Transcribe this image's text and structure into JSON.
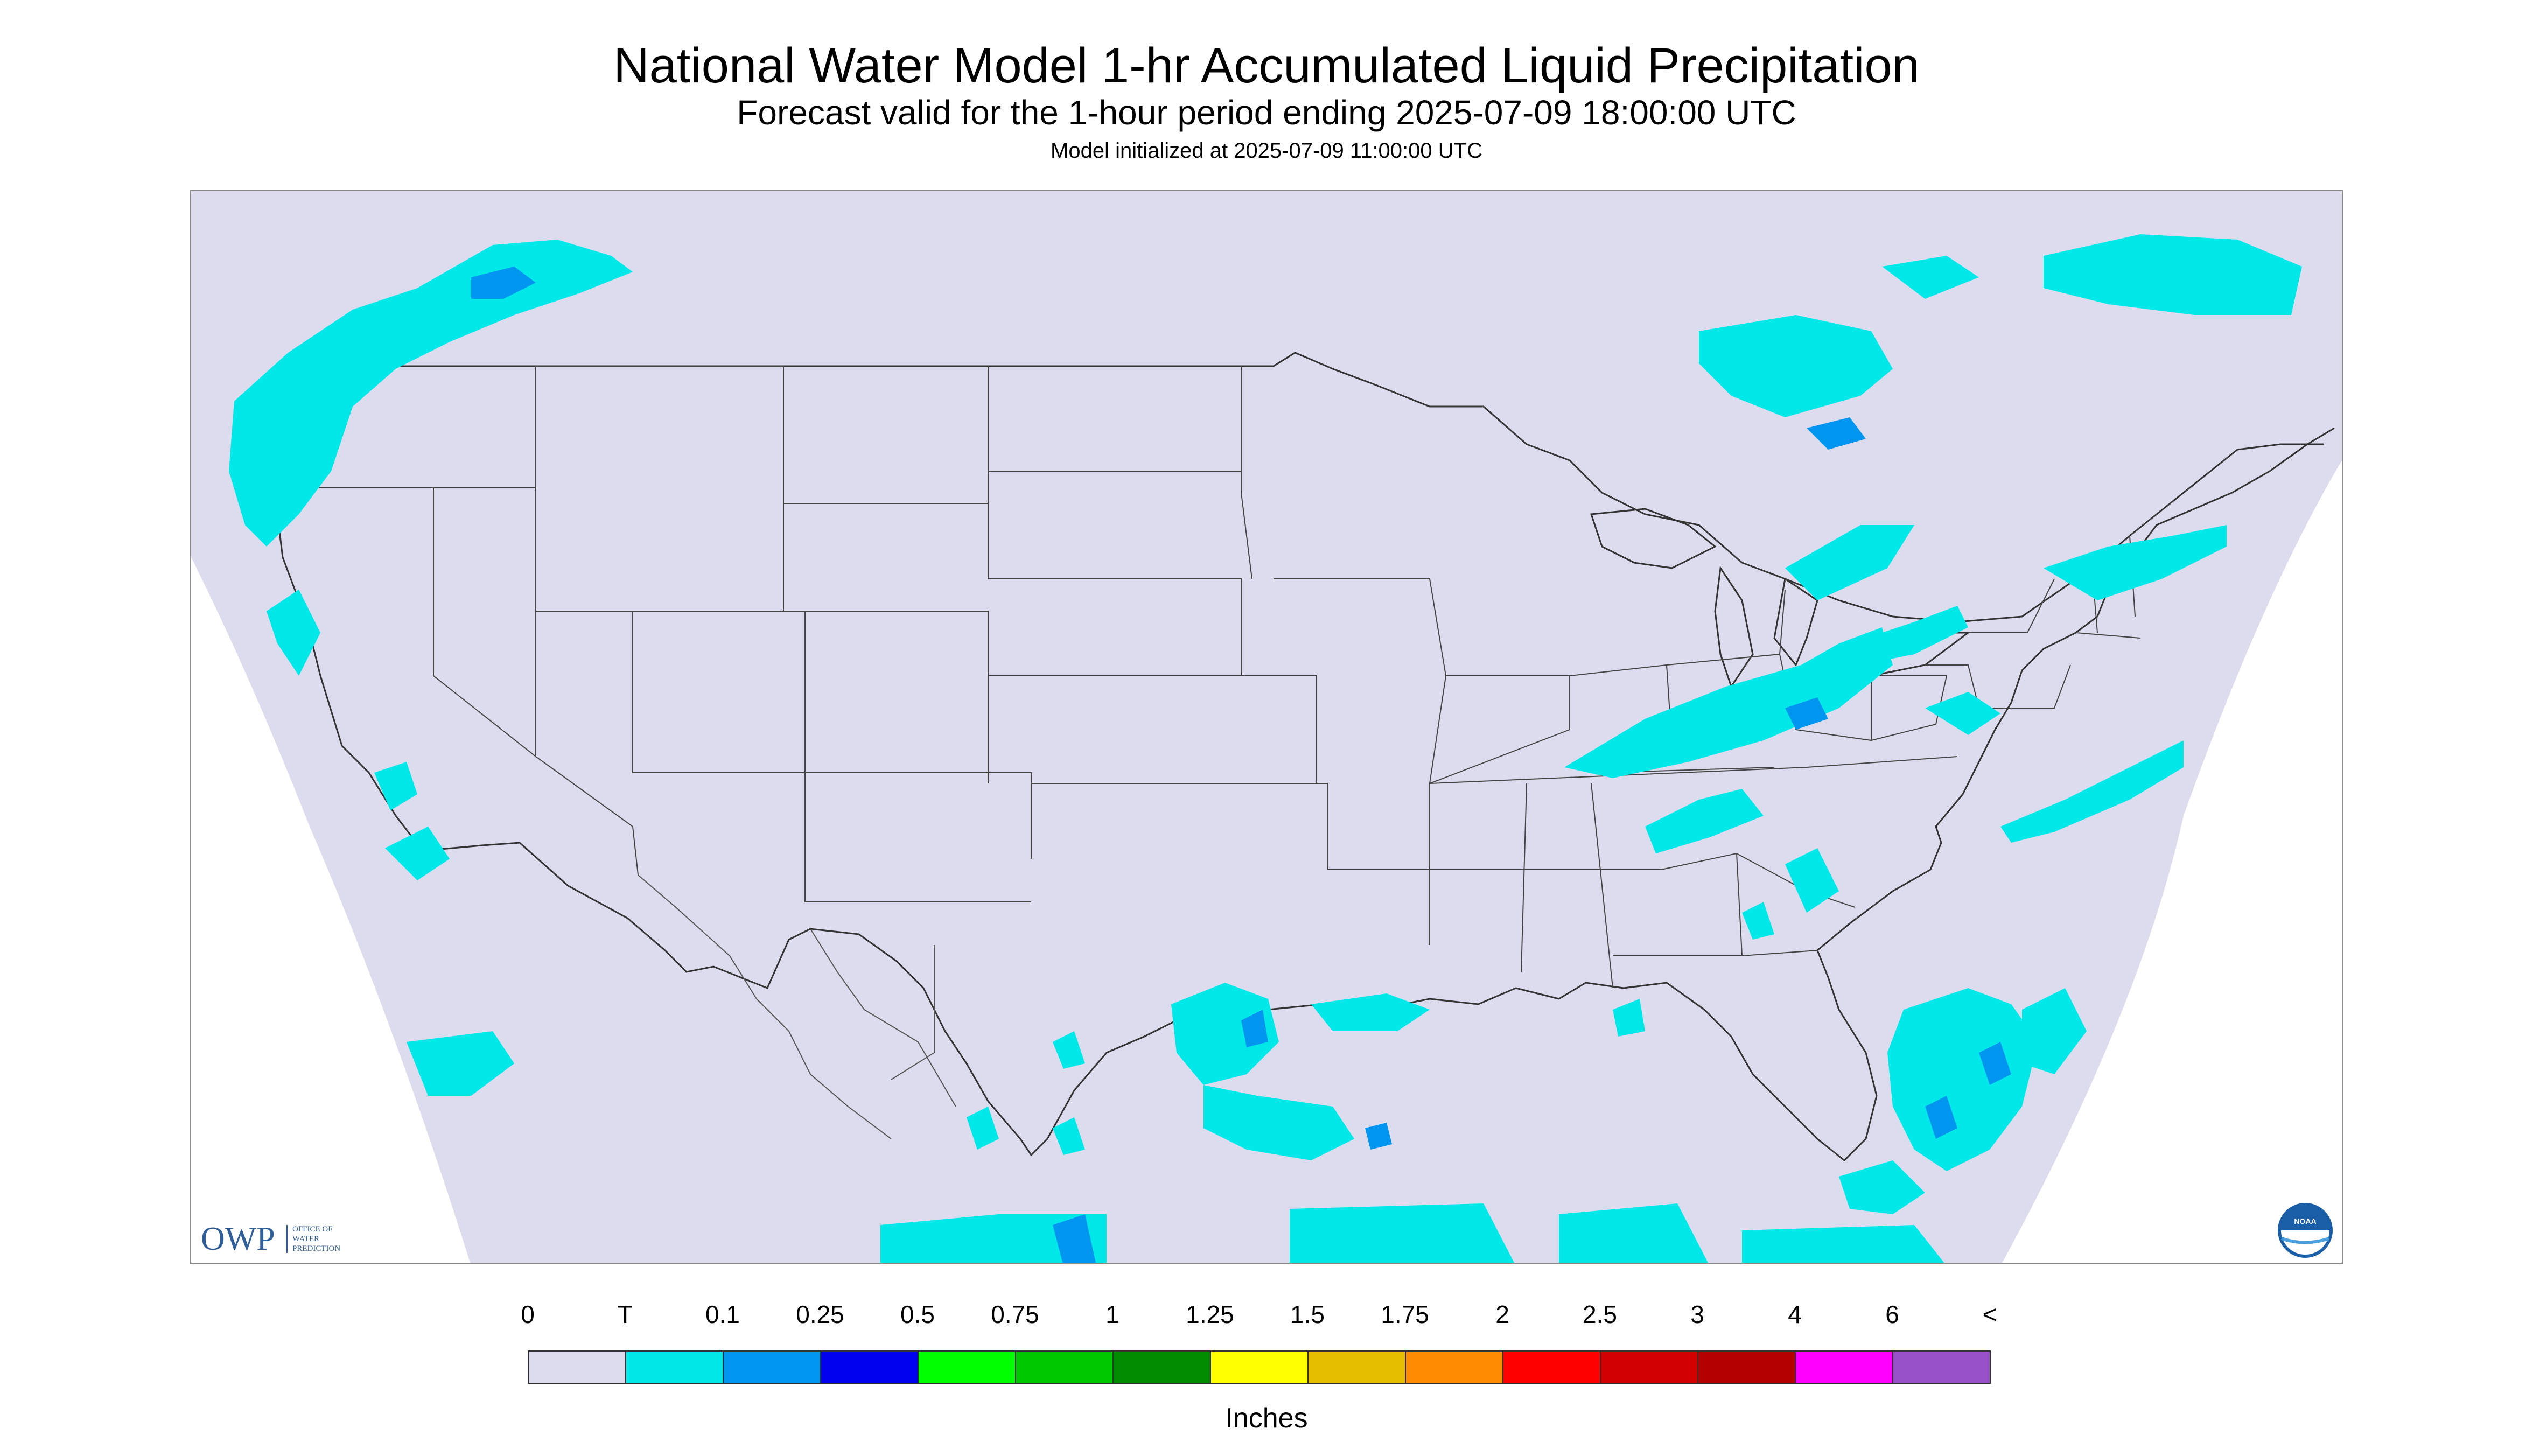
{
  "title": "National Water Model 1-hr Accumulated Liquid Precipitation",
  "subtitle": "Forecast valid for the 1-hour period ending 2025-07-09 18:00:00 UTC",
  "init_text": "Model initialized at 2025-07-09 11:00:00 UTC",
  "logos": {
    "owp_text": "OWP",
    "owp_subtext": [
      "OFFICE OF",
      "WATER",
      "PREDICTION"
    ],
    "noaa_text": "NOAA"
  },
  "legend": {
    "labels": [
      "0",
      "T",
      "0.1",
      "0.25",
      "0.5",
      "0.75",
      "1",
      "1.25",
      "1.5",
      "1.75",
      "2",
      "2.5",
      "3",
      "4",
      "6",
      "<"
    ],
    "colors": [
      "#dcdcee",
      "#00e8e8",
      "#0096f0",
      "#0000ee",
      "#00ff00",
      "#00c800",
      "#008c00",
      "#ffff00",
      "#e6be00",
      "#ff8c00",
      "#ff0000",
      "#d20000",
      "#b40000",
      "#ff00ff",
      "#9650c8"
    ],
    "units": "Inches"
  },
  "map": {
    "background_color": "#dcdcee",
    "outside_color": "#ffffff",
    "boundary_color": "#333333",
    "precip_light": "#00e8e8",
    "precip_medium": "#0096f0",
    "precip_heavy": "#0000ee"
  }
}
